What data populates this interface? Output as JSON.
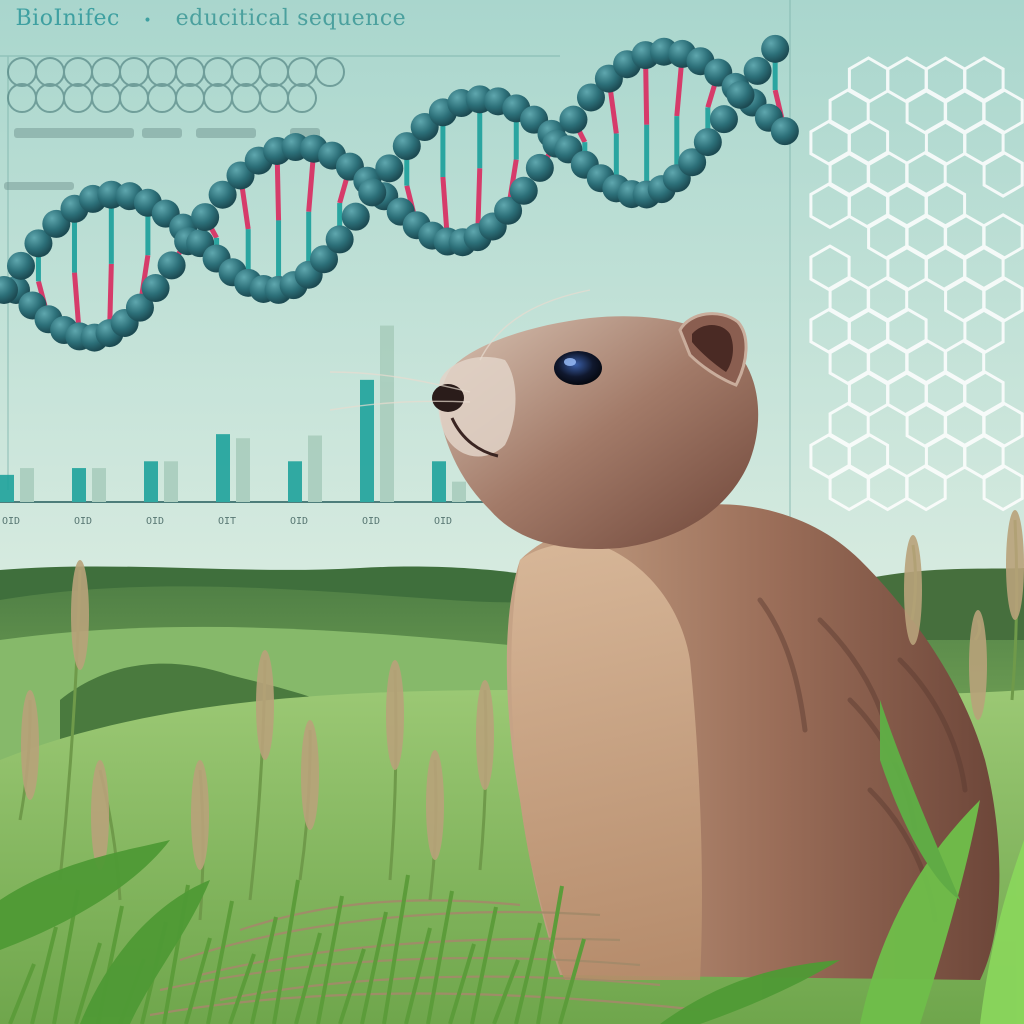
{
  "image": {
    "description": "Illustration of a groundhog sitting in tall grass in front of rolling green hills, overlaid with a DNA double helix, a faint bar chart and a hexagonal molecular lattice on a pale teal sky.",
    "colors": {
      "sky_top": "#bfe0d6",
      "sky_bottom": "#e4efdc",
      "hill_far": "#6f9e5a",
      "hill_near": "#8fc06a",
      "grass": "#5e9a3e",
      "helix_bead": "#2f7f86",
      "helix_rung_pink": "#d63b6a",
      "helix_rung_teal": "#2aa5a0",
      "bar_teal": "#1fa39c",
      "bar_pale": "#a9cdbd",
      "fur_light": "#c9a98c",
      "fur_dark": "#7a4f40",
      "lattice": "#ffffff"
    }
  },
  "overlay_text": {
    "prefix": "",
    "brand": "BioInifec",
    "separator": "•",
    "subtitle": "educitical sequence"
  },
  "chart_data": {
    "type": "bar",
    "title": "",
    "xlabel": "",
    "ylabel": "",
    "categories": [
      "OID",
      "OID",
      "OID",
      "OIT",
      "OID",
      "OID",
      "OID"
    ],
    "series": [
      {
        "values": [
          2,
          2.5,
          3,
          5,
          3,
          9,
          3
        ]
      },
      {
        "values": [
          2.5,
          2.5,
          3,
          4.7,
          4.9,
          13,
          1.5
        ]
      }
    ],
    "ylim": [
      0,
      14
    ]
  }
}
